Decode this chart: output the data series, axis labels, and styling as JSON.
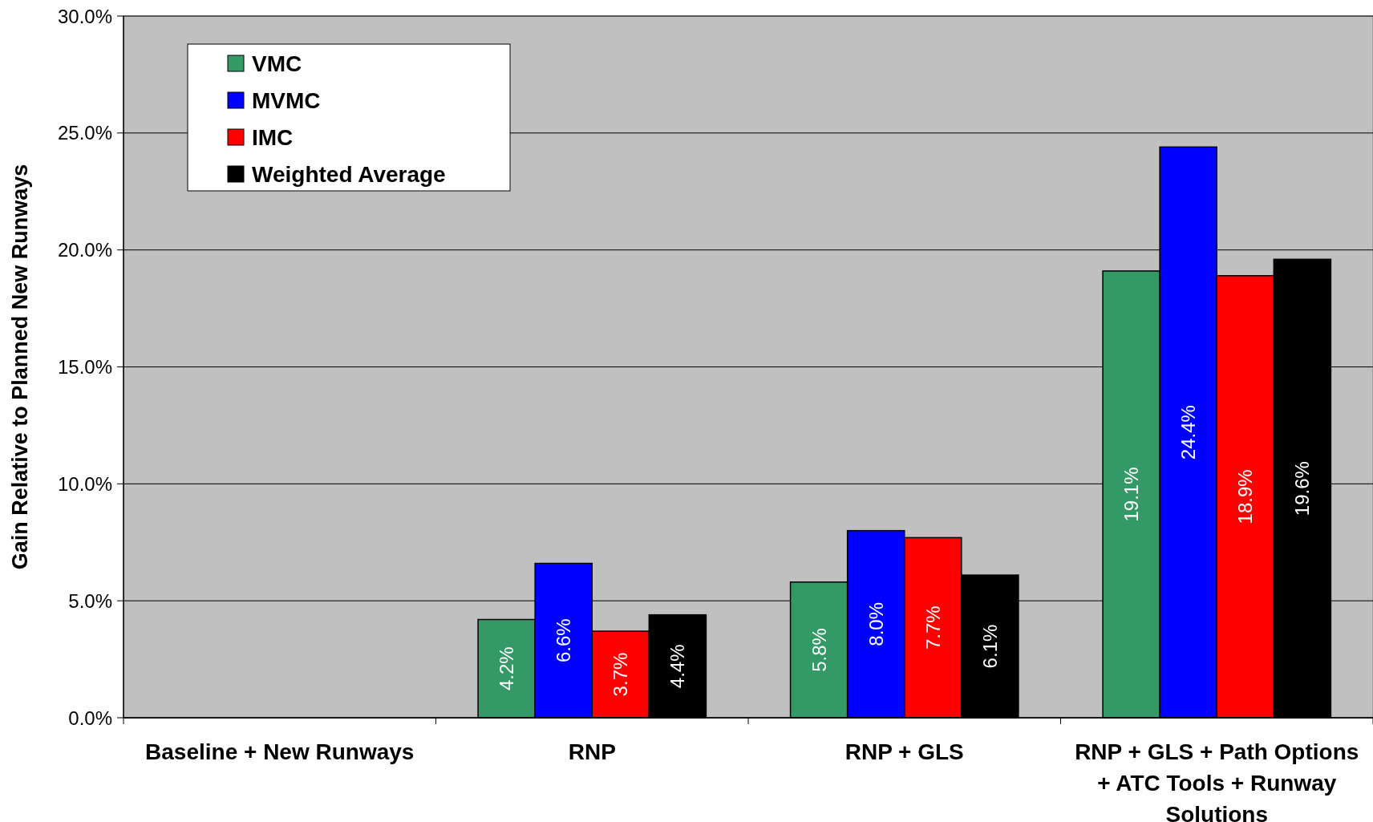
{
  "chart_data": {
    "type": "bar",
    "ylabel": "Gain Relative to Planned New Runways",
    "categories": [
      "Baseline + New Runways",
      "RNP",
      "RNP + GLS",
      "RNP + GLS + Path Options + ATC Tools + Runway Solutions"
    ],
    "series": [
      {
        "name": "VMC",
        "color": "#339966",
        "values": [
          null,
          4.2,
          5.8,
          19.1
        ],
        "value_labels": [
          null,
          "4.2%",
          "5.8%",
          "19.1%"
        ]
      },
      {
        "name": "MVMC",
        "color": "#0000ff",
        "values": [
          null,
          6.6,
          8.0,
          24.4
        ],
        "value_labels": [
          null,
          "6.6%",
          "8.0%",
          "24.4%"
        ]
      },
      {
        "name": "IMC",
        "color": "#ff0000",
        "values": [
          null,
          3.7,
          7.7,
          18.9
        ],
        "value_labels": [
          null,
          "3.7%",
          "7.7%",
          "18.9%"
        ]
      },
      {
        "name": "Weighted Average",
        "color": "#000000",
        "values": [
          null,
          4.4,
          6.1,
          19.6
        ],
        "value_labels": [
          null,
          "4.4%",
          "6.1%",
          "19.6%"
        ]
      }
    ],
    "ylim": [
      0,
      30
    ],
    "yticks": [
      {
        "value": 0,
        "label": "0.0%"
      },
      {
        "value": 5,
        "label": "5.0%"
      },
      {
        "value": 10,
        "label": "10.0%"
      },
      {
        "value": 15,
        "label": "15.0%"
      },
      {
        "value": 20,
        "label": "20.0%"
      },
      {
        "value": 25,
        "label": "25.0%"
      },
      {
        "value": 30,
        "label": "30.0%"
      }
    ],
    "grid": "y",
    "legend": "top left"
  }
}
